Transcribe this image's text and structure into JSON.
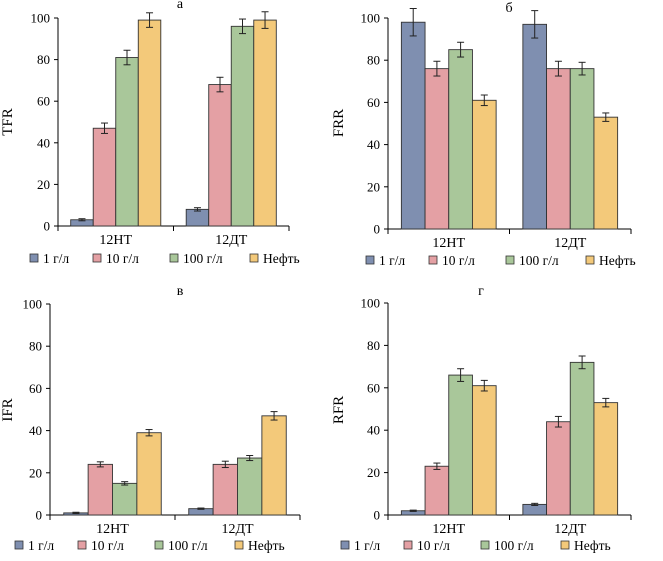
{
  "colors": {
    "1 г/л": "#7f8fb0",
    "10 г/л": "#e4a0a4",
    "100 г/л": "#a9c79a",
    "Нефть": "#f3c97a"
  },
  "chart_data": [
    {
      "type": "bar",
      "title": "а",
      "xlabel": "",
      "ylabel": "TFR",
      "ylim": [
        0,
        100
      ],
      "yticks": [
        0,
        20,
        40,
        60,
        80,
        100
      ],
      "grid": false,
      "legend_position": "bottom",
      "categories": [
        "12НТ",
        "12ДТ"
      ],
      "series": [
        {
          "name": "1 г/л",
          "values": [
            3,
            8
          ],
          "errors": [
            0.5,
            0.8
          ]
        },
        {
          "name": "10 г/л",
          "values": [
            47,
            68
          ],
          "errors": [
            2.5,
            3.5
          ]
        },
        {
          "name": "100 г/л",
          "values": [
            81,
            96
          ],
          "errors": [
            3.5,
            3.5
          ]
        },
        {
          "name": "Нефть",
          "values": [
            99,
            99
          ],
          "errors": [
            3.5,
            4
          ]
        }
      ]
    },
    {
      "type": "bar",
      "title": "б",
      "xlabel": "",
      "ylabel": "FRR",
      "ylim": [
        0,
        100
      ],
      "yticks": [
        0,
        20,
        40,
        60,
        80,
        100
      ],
      "grid": false,
      "legend_position": "bottom",
      "categories": [
        "12НТ",
        "12ДТ"
      ],
      "series": [
        {
          "name": "1 г/л",
          "values": [
            98,
            97
          ],
          "errors": [
            6.5,
            6.5
          ]
        },
        {
          "name": "10 г/л",
          "values": [
            76,
            76
          ],
          "errors": [
            3.5,
            3.5
          ]
        },
        {
          "name": "100 г/л",
          "values": [
            85,
            76
          ],
          "errors": [
            3.5,
            3
          ]
        },
        {
          "name": "Нефть",
          "values": [
            61,
            53
          ],
          "errors": [
            2.5,
            2
          ]
        }
      ]
    },
    {
      "type": "bar",
      "title": "в",
      "xlabel": "",
      "ylabel": "IFR",
      "ylim": [
        0,
        100
      ],
      "yticks": [
        0,
        20,
        40,
        60,
        80,
        100
      ],
      "grid": false,
      "legend_position": "bottom",
      "categories": [
        "12НТ",
        "12ДТ"
      ],
      "series": [
        {
          "name": "1 г/л",
          "values": [
            1,
            3
          ],
          "errors": [
            0.3,
            0.3
          ]
        },
        {
          "name": "10 г/л",
          "values": [
            24,
            24
          ],
          "errors": [
            1.2,
            1.5
          ]
        },
        {
          "name": "100 г/л",
          "values": [
            15,
            27
          ],
          "errors": [
            0.8,
            1.2
          ]
        },
        {
          "name": "Нефть",
          "values": [
            39,
            47
          ],
          "errors": [
            1.5,
            2
          ]
        }
      ]
    },
    {
      "type": "bar",
      "title": "г",
      "xlabel": "",
      "ylabel": "RFR",
      "ylim": [
        0,
        100
      ],
      "yticks": [
        0,
        20,
        40,
        60,
        80,
        100
      ],
      "grid": false,
      "legend_position": "bottom",
      "categories": [
        "12НТ",
        "12ДТ"
      ],
      "series": [
        {
          "name": "1 г/л",
          "values": [
            2,
            5
          ],
          "errors": [
            0.3,
            0.5
          ]
        },
        {
          "name": "10 г/л",
          "values": [
            23,
            44
          ],
          "errors": [
            1.5,
            2.5
          ]
        },
        {
          "name": "100 г/л",
          "values": [
            66,
            72
          ],
          "errors": [
            3,
            3
          ]
        },
        {
          "name": "Нефть",
          "values": [
            61,
            53
          ],
          "errors": [
            2.5,
            2
          ]
        }
      ]
    }
  ]
}
